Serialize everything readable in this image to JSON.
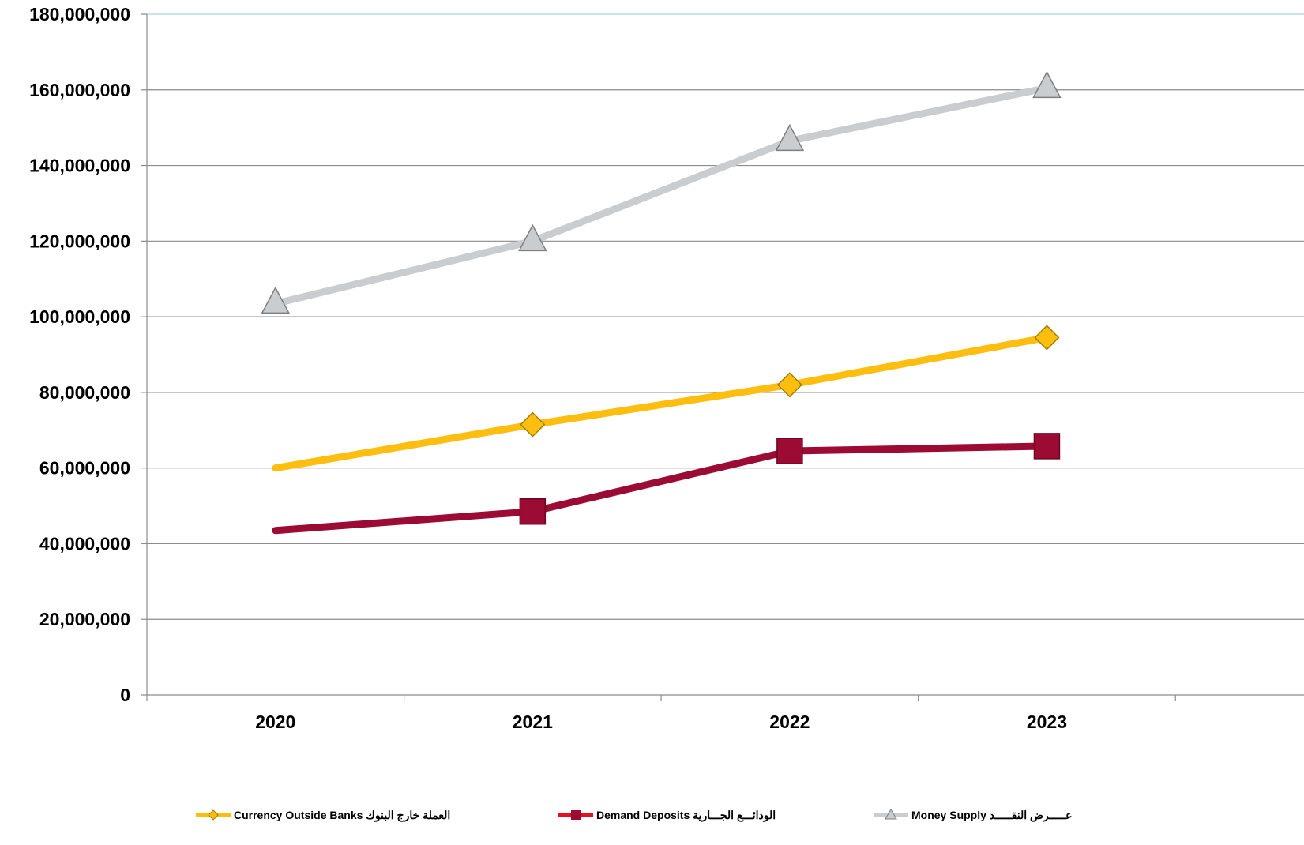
{
  "chart_data": {
    "type": "line",
    "categories": [
      "2020",
      "2021",
      "2022",
      "2023"
    ],
    "ylim": [
      0,
      180000000
    ],
    "yticks": [
      "0",
      "20,000,000",
      "40,000,000",
      "60,000,000",
      "80,000,000",
      "100,000,000",
      "120,000,000",
      "140,000,000",
      "160,000,000",
      "180,000,000"
    ],
    "grid": true,
    "legend_position": "bottom",
    "series": [
      {
        "key": "currency",
        "name": "Currency  Outside Banks العملة خارج البنوك",
        "marker": "diamond",
        "color": "#FDBE10",
        "values": [
          60000000,
          71500000,
          82000000,
          94500000
        ]
      },
      {
        "key": "deposits",
        "name": "Demand Deposits الودائـــع الجـــارية",
        "marker": "square",
        "color": "#9B0B33",
        "legend_color": "#E8101F",
        "values": [
          43500000,
          48500000,
          64500000,
          65800000
        ]
      },
      {
        "key": "money",
        "name": "Money  Supply عـــــرض  النقـــــد",
        "marker": "triangle",
        "color": "#C9CDCF",
        "values": [
          103500000,
          120000000,
          146500000,
          160500000
        ]
      }
    ]
  }
}
